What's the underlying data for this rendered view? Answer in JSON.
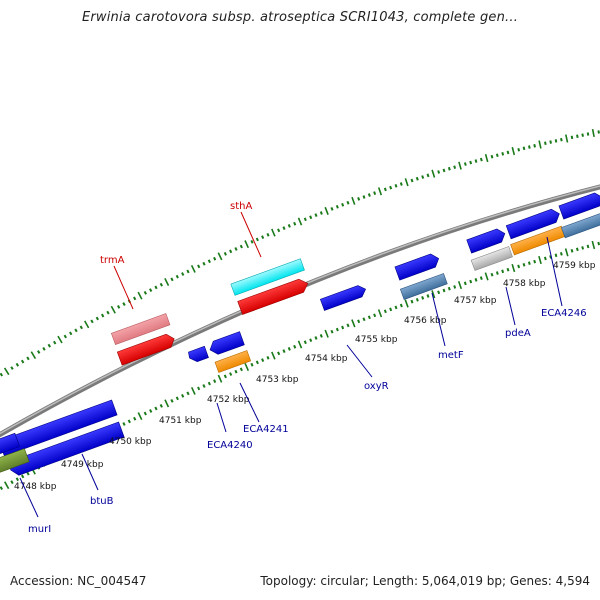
{
  "title": "Erwinia carotovora subsp. atroseptica SCRI1043, complete gen...",
  "footer": {
    "accession": "Accession: NC_004547",
    "summary": "Topology: circular; Length: 5,064,019 bp; Genes: 4,594"
  },
  "colors": {
    "backbone": "#888888",
    "tick": "#1a7a1a",
    "label_red": "#cc0000",
    "label_blue": "#000099"
  },
  "kbp_labels": [
    "4748 kbp",
    "4749 kbp",
    "4750 kbp",
    "4751 kbp",
    "4752 kbp",
    "4753 kbp",
    "4754 kbp",
    "4755 kbp",
    "4756 kbp",
    "4757 kbp",
    "4758 kbp",
    "4759 kbp"
  ],
  "gene_labels": {
    "sthA": "sthA",
    "trmA": "trmA",
    "murI": "murI",
    "btuB": "btuB",
    "ECA4240": "ECA4240",
    "ECA4241": "ECA4241",
    "oxyR": "oxyR",
    "metF": "metF",
    "pdeA": "pdeA",
    "ECA4246": "ECA4246"
  }
}
